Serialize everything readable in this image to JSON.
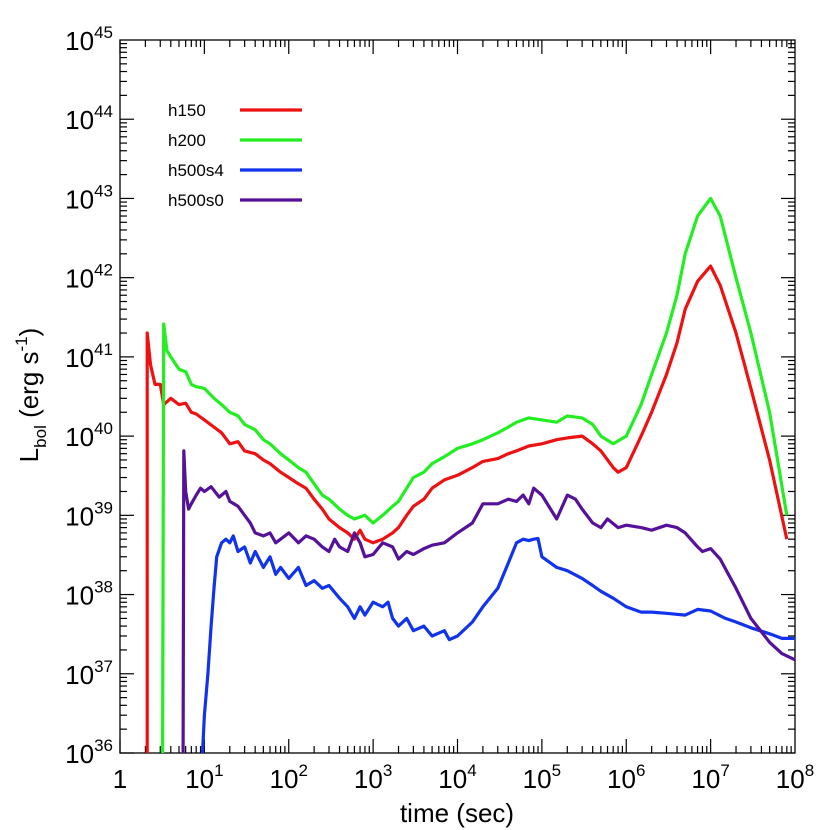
{
  "chart_data": {
    "type": "line",
    "xscale": "log",
    "yscale": "log",
    "xlim": [
      1,
      100000000
    ],
    "ylim": [
      1e+36,
      1e+45
    ],
    "xlabel": "time (sec)",
    "ylabel": "L_bol (erg s^-1)",
    "ylabel_parts": {
      "main": "L",
      "sub": "bol",
      "rest": " (erg s",
      "sup": "-1",
      "close": ")"
    },
    "x_ticks": [
      {
        "base": "1",
        "exp": ""
      },
      {
        "base": "10",
        "exp": "1"
      },
      {
        "base": "10",
        "exp": "2"
      },
      {
        "base": "10",
        "exp": "3"
      },
      {
        "base": "10",
        "exp": "4"
      },
      {
        "base": "10",
        "exp": "5"
      },
      {
        "base": "10",
        "exp": "6"
      },
      {
        "base": "10",
        "exp": "7"
      },
      {
        "base": "10",
        "exp": "8"
      }
    ],
    "y_ticks": [
      {
        "base": "10",
        "exp": "36"
      },
      {
        "base": "10",
        "exp": "37"
      },
      {
        "base": "10",
        "exp": "38"
      },
      {
        "base": "10",
        "exp": "39"
      },
      {
        "base": "10",
        "exp": "40"
      },
      {
        "base": "10",
        "exp": "41"
      },
      {
        "base": "10",
        "exp": "42"
      },
      {
        "base": "10",
        "exp": "43"
      },
      {
        "base": "10",
        "exp": "44"
      },
      {
        "base": "10",
        "exp": "45"
      }
    ],
    "legend_position": "top-left",
    "series": [
      {
        "name": "h150",
        "color": "#ee1111",
        "points": [
          [
            2.1,
            1e+36
          ],
          [
            2.1,
            2e+41
          ],
          [
            2.3,
            8e+40
          ],
          [
            2.6,
            4.5e+40
          ],
          [
            3.0,
            4.5e+40
          ],
          [
            3.3,
            2.5e+40
          ],
          [
            4,
            3e+40
          ],
          [
            5,
            2.5e+40
          ],
          [
            6,
            2.6e+40
          ],
          [
            7,
            2e+40
          ],
          [
            8,
            1.9e+40
          ],
          [
            10,
            1.6e+40
          ],
          [
            13,
            1.3e+40
          ],
          [
            16,
            1.1e+40
          ],
          [
            20,
            8e+39
          ],
          [
            25,
            8.5e+39
          ],
          [
            30,
            6.5e+39
          ],
          [
            40,
            6e+39
          ],
          [
            50,
            5e+39
          ],
          [
            60,
            4.5e+39
          ],
          [
            80,
            3.5e+39
          ],
          [
            100,
            3e+39
          ],
          [
            130,
            2.5e+39
          ],
          [
            160,
            2.2e+39
          ],
          [
            200,
            1.6e+39
          ],
          [
            250,
            1.2e+39
          ],
          [
            300,
            9e+38
          ],
          [
            400,
            7e+38
          ],
          [
            500,
            6e+38
          ],
          [
            600,
            5e+38
          ],
          [
            700,
            6.5e+38
          ],
          [
            800,
            5e+38
          ],
          [
            1000,
            4.5e+38
          ],
          [
            1300,
            5e+38
          ],
          [
            1700,
            6e+38
          ],
          [
            2000,
            7e+38
          ],
          [
            2500,
            1e+39
          ],
          [
            3000,
            1.3e+39
          ],
          [
            4000,
            1.6e+39
          ],
          [
            5000,
            2.2e+39
          ],
          [
            7000,
            2.8e+39
          ],
          [
            10000,
            3.2e+39
          ],
          [
            15000,
            4e+39
          ],
          [
            20000,
            4.8e+39
          ],
          [
            30000,
            5.2e+39
          ],
          [
            40000,
            6e+39
          ],
          [
            50000,
            6.5e+39
          ],
          [
            70000,
            7.5e+39
          ],
          [
            100000,
            8e+39
          ],
          [
            150000,
            9e+39
          ],
          [
            200000,
            9.5e+39
          ],
          [
            300000,
            1e+40
          ],
          [
            400000,
            8e+39
          ],
          [
            500000,
            6.5e+39
          ],
          [
            700000,
            4e+39
          ],
          [
            800000,
            3.5e+39
          ],
          [
            1000000,
            4e+39
          ],
          [
            1500000,
            1e+40
          ],
          [
            2000000,
            2e+40
          ],
          [
            3000000,
            6e+40
          ],
          [
            4000000,
            1.5e+41
          ],
          [
            5000000,
            4e+41
          ],
          [
            7000000,
            9e+41
          ],
          [
            10000000,
            1.4e+42
          ],
          [
            13000000,
            8e+41
          ],
          [
            20000000,
            2e+41
          ],
          [
            30000000,
            4e+40
          ],
          [
            50000000,
            5e+39
          ],
          [
            80000000,
            5e+38
          ]
        ]
      },
      {
        "name": "h200",
        "color": "#22ee22",
        "points": [
          [
            3.2,
            1e+36
          ],
          [
            3.3,
            2.6e+41
          ],
          [
            3.6,
            1.2e+41
          ],
          [
            4,
            1e+41
          ],
          [
            5,
            7e+40
          ],
          [
            6,
            6.5e+40
          ],
          [
            7,
            4.5e+40
          ],
          [
            8,
            4.2e+40
          ],
          [
            10,
            4e+40
          ],
          [
            13,
            3e+40
          ],
          [
            16,
            2.5e+40
          ],
          [
            20,
            2e+40
          ],
          [
            25,
            1.8e+40
          ],
          [
            30,
            1.4e+40
          ],
          [
            40,
            1.2e+40
          ],
          [
            50,
            9e+39
          ],
          [
            60,
            8e+39
          ],
          [
            80,
            6e+39
          ],
          [
            100,
            5e+39
          ],
          [
            130,
            4e+39
          ],
          [
            160,
            3.5e+39
          ],
          [
            200,
            2.5e+39
          ],
          [
            250,
            1.8e+39
          ],
          [
            300,
            1.6e+39
          ],
          [
            400,
            1.2e+39
          ],
          [
            500,
            1e+39
          ],
          [
            600,
            9e+38
          ],
          [
            800,
            1e+39
          ],
          [
            1000,
            8e+38
          ],
          [
            1300,
            1e+39
          ],
          [
            1700,
            1.3e+39
          ],
          [
            2000,
            1.5e+39
          ],
          [
            2500,
            2.2e+39
          ],
          [
            3000,
            3e+39
          ],
          [
            4000,
            3.5e+39
          ],
          [
            5000,
            4.5e+39
          ],
          [
            7000,
            5.5e+39
          ],
          [
            10000,
            7e+39
          ],
          [
            15000,
            8e+39
          ],
          [
            20000,
            9e+39
          ],
          [
            30000,
            1.1e+40
          ],
          [
            40000,
            1.3e+40
          ],
          [
            50000,
            1.5e+40
          ],
          [
            70000,
            1.7e+40
          ],
          [
            100000,
            1.6e+40
          ],
          [
            150000,
            1.5e+40
          ],
          [
            200000,
            1.8e+40
          ],
          [
            300000,
            1.7e+40
          ],
          [
            400000,
            1.4e+40
          ],
          [
            500000,
            1e+40
          ],
          [
            700000,
            8e+39
          ],
          [
            1000000,
            1e+40
          ],
          [
            1500000,
            2.5e+40
          ],
          [
            2000000,
            6e+40
          ],
          [
            3000000,
            2e+41
          ],
          [
            4000000,
            6e+41
          ],
          [
            5000000,
            2e+42
          ],
          [
            7000000,
            6e+42
          ],
          [
            10000000,
            1e+43
          ],
          [
            13000000,
            6e+42
          ],
          [
            20000000,
            1e+42
          ],
          [
            30000000,
            2e+41
          ],
          [
            50000000,
            2e+40
          ],
          [
            80000000,
            1e+39
          ]
        ]
      },
      {
        "name": "h500s4",
        "color": "#1133ee",
        "points": [
          [
            9.5,
            1e+36
          ],
          [
            10,
            3e+36
          ],
          [
            11,
            1e+37
          ],
          [
            12,
            4e+37
          ],
          [
            13,
            1.2e+38
          ],
          [
            14,
            3e+38
          ],
          [
            16,
            4.5e+38
          ],
          [
            18,
            5e+38
          ],
          [
            20,
            4.5e+38
          ],
          [
            22,
            5.5e+38
          ],
          [
            25,
            3.5e+38
          ],
          [
            30,
            4e+38
          ],
          [
            35,
            2.5e+38
          ],
          [
            40,
            3.5e+38
          ],
          [
            50,
            2.2e+38
          ],
          [
            60,
            3e+38
          ],
          [
            70,
            1.8e+38
          ],
          [
            80,
            2.2e+38
          ],
          [
            100,
            1.6e+38
          ],
          [
            130,
            2.2e+38
          ],
          [
            160,
            1.3e+38
          ],
          [
            200,
            1.5e+38
          ],
          [
            250,
            1.2e+38
          ],
          [
            300,
            1.3e+38
          ],
          [
            400,
            9e+37
          ],
          [
            500,
            7e+37
          ],
          [
            600,
            5e+37
          ],
          [
            700,
            7e+37
          ],
          [
            800,
            5.5e+37
          ],
          [
            1000,
            8e+37
          ],
          [
            1300,
            7e+37
          ],
          [
            1500,
            8e+37
          ],
          [
            1700,
            5e+37
          ],
          [
            2000,
            4e+37
          ],
          [
            2500,
            5e+37
          ],
          [
            3000,
            3.5e+37
          ],
          [
            4000,
            4e+37
          ],
          [
            5000,
            3e+37
          ],
          [
            7000,
            3.5e+37
          ],
          [
            8000,
            2.7e+37
          ],
          [
            10000,
            3e+37
          ],
          [
            15000,
            4.5e+37
          ],
          [
            20000,
            7e+37
          ],
          [
            30000,
            1.2e+38
          ],
          [
            40000,
            2.5e+38
          ],
          [
            50000,
            4.5e+38
          ],
          [
            60000,
            5e+38
          ],
          [
            70000,
            4.8e+38
          ],
          [
            80000,
            5e+38
          ],
          [
            90000,
            5.1e+38
          ],
          [
            100000,
            3e+38
          ],
          [
            150000,
            2.2e+38
          ],
          [
            200000,
            2e+38
          ],
          [
            300000,
            1.6e+38
          ],
          [
            400000,
            1.3e+38
          ],
          [
            500000,
            1.1e+38
          ],
          [
            700000,
            9e+37
          ],
          [
            1000000,
            7e+37
          ],
          [
            1500000,
            6e+37
          ],
          [
            2000000,
            6e+37
          ],
          [
            3000000,
            5.8e+37
          ],
          [
            5000000,
            5.5e+37
          ],
          [
            7000000,
            6.5e+37
          ],
          [
            10000000,
            6.2e+37
          ],
          [
            15000000,
            5e+37
          ],
          [
            20000000,
            4.5e+37
          ],
          [
            30000000,
            3.8e+37
          ],
          [
            50000000,
            3.2e+37
          ],
          [
            70000000,
            2.8e+37
          ],
          [
            100000000,
            2.8e+37
          ]
        ]
      },
      {
        "name": "h500s0",
        "color": "#551199",
        "points": [
          [
            5.6,
            1e+36
          ],
          [
            5.7,
            6.5e+39
          ],
          [
            6,
            2e+39
          ],
          [
            6.5,
            1.2e+39
          ],
          [
            7,
            1.4e+39
          ],
          [
            8,
            1.8e+39
          ],
          [
            9,
            2.2e+39
          ],
          [
            10,
            2e+39
          ],
          [
            12,
            2.3e+39
          ],
          [
            15,
            1.7e+39
          ],
          [
            18,
            2e+39
          ],
          [
            20,
            1.5e+39
          ],
          [
            25,
            1.3e+39
          ],
          [
            30,
            1e+39
          ],
          [
            35,
            8e+38
          ],
          [
            40,
            6e+38
          ],
          [
            50,
            5.5e+38
          ],
          [
            60,
            6e+38
          ],
          [
            70,
            4.5e+38
          ],
          [
            80,
            5e+38
          ],
          [
            100,
            6e+38
          ],
          [
            130,
            4.5e+38
          ],
          [
            160,
            5.5e+38
          ],
          [
            200,
            5e+38
          ],
          [
            250,
            4e+38
          ],
          [
            300,
            3.5e+38
          ],
          [
            350,
            5e+38
          ],
          [
            400,
            4e+38
          ],
          [
            500,
            3.5e+38
          ],
          [
            600,
            6e+38
          ],
          [
            700,
            4.5e+38
          ],
          [
            800,
            3e+38
          ],
          [
            1000,
            3.2e+38
          ],
          [
            1300,
            4.5e+38
          ],
          [
            1700,
            4e+38
          ],
          [
            2000,
            2.8e+38
          ],
          [
            2500,
            3.5e+38
          ],
          [
            3000,
            3.2e+38
          ],
          [
            4000,
            3.8e+38
          ],
          [
            5000,
            4.2e+38
          ],
          [
            7000,
            4.5e+38
          ],
          [
            10000,
            6e+38
          ],
          [
            15000,
            8e+38
          ],
          [
            20000,
            1.4e+39
          ],
          [
            30000,
            1.4e+39
          ],
          [
            40000,
            1.6e+39
          ],
          [
            50000,
            1.5e+39
          ],
          [
            60000,
            1.8e+39
          ],
          [
            70000,
            1.4e+39
          ],
          [
            80000,
            2.2e+39
          ],
          [
            100000,
            1.8e+39
          ],
          [
            150000,
            9e+38
          ],
          [
            200000,
            1.8e+39
          ],
          [
            250000,
            1.6e+39
          ],
          [
            300000,
            1.2e+39
          ],
          [
            400000,
            8e+38
          ],
          [
            500000,
            7e+38
          ],
          [
            600000,
            9e+38
          ],
          [
            800000,
            7e+38
          ],
          [
            1000000,
            7.5e+38
          ],
          [
            1500000,
            7e+38
          ],
          [
            2000000,
            6.5e+38
          ],
          [
            3000000,
            7.5e+38
          ],
          [
            4000000,
            7e+38
          ],
          [
            5000000,
            6e+38
          ],
          [
            7000000,
            4e+38
          ],
          [
            8000000,
            3.5e+38
          ],
          [
            10000000,
            3.8e+38
          ],
          [
            13000000,
            2.8e+38
          ],
          [
            20000000,
            1.2e+38
          ],
          [
            30000000,
            5e+37
          ],
          [
            50000000,
            2.5e+37
          ],
          [
            70000000,
            1.8e+37
          ],
          [
            100000000,
            1.5e+37
          ]
        ]
      }
    ]
  }
}
